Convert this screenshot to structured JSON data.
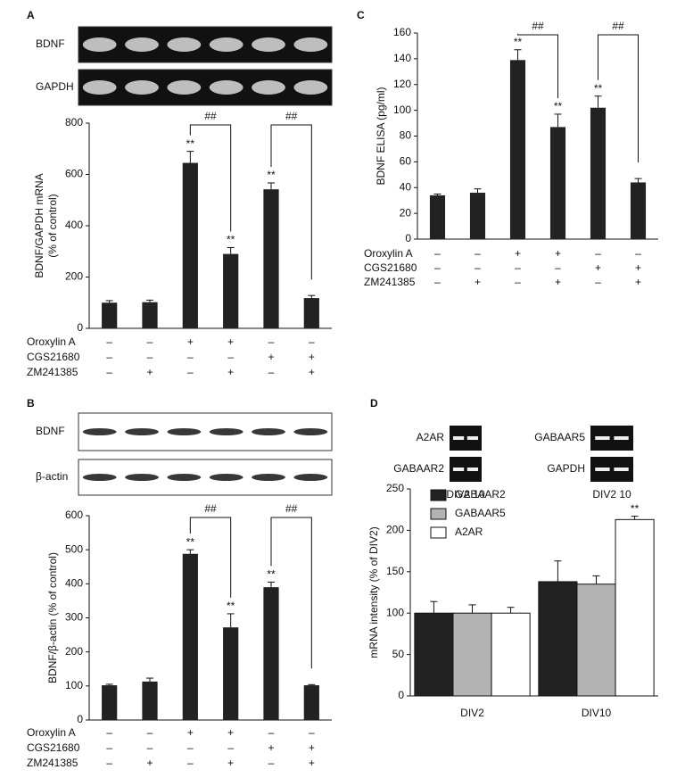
{
  "chart_data": [
    {
      "type": "bar",
      "panel": "A",
      "blots": [
        "BDNF",
        "GAPDH"
      ],
      "ylabel": [
        "BDNF/GAPDH mRNA",
        "(% of control)"
      ],
      "values": [
        100,
        102,
        645,
        290,
        542,
        118
      ],
      "errors": [
        8,
        8,
        45,
        25,
        25,
        10
      ],
      "annotations": [
        null,
        null,
        "**",
        "**",
        "**",
        null
      ],
      "brackets": [
        {
          "label": "##",
          "bars": [
            2,
            3
          ]
        },
        {
          "label": "##",
          "bars": [
            4,
            5
          ]
        }
      ],
      "ylim": [
        0,
        800
      ],
      "yticks": [
        0,
        200,
        400,
        600,
        800
      ],
      "color": "#222222",
      "treatments": [
        {
          "name": "Oroxylin A",
          "signs": [
            "–",
            "–",
            "+",
            "+",
            "–",
            "–"
          ]
        },
        {
          "name": "CGS21680",
          "signs": [
            "–",
            "–",
            "–",
            "–",
            "+",
            "+"
          ]
        },
        {
          "name": "ZM241385",
          "signs": [
            "–",
            "+",
            "–",
            "+",
            "–",
            "+"
          ]
        }
      ]
    },
    {
      "type": "bar",
      "panel": "B",
      "blots": [
        "BDNF",
        "β-actin"
      ],
      "ylabel": [
        "BDNF/β-actin (% of control)"
      ],
      "values": [
        102,
        113,
        488,
        272,
        390,
        102
      ],
      "errors": [
        3,
        10,
        12,
        40,
        15,
        2
      ],
      "annotations": [
        null,
        null,
        "**",
        "**",
        "**",
        null
      ],
      "brackets": [
        {
          "label": "##",
          "bars": [
            2,
            3
          ]
        },
        {
          "label": "##",
          "bars": [
            4,
            5
          ]
        }
      ],
      "ylim": [
        0,
        600
      ],
      "yticks": [
        0,
        100,
        200,
        300,
        400,
        500,
        600
      ],
      "color": "#222222",
      "treatments": [
        {
          "name": "Oroxylin A",
          "signs": [
            "–",
            "–",
            "+",
            "+",
            "–",
            "–"
          ]
        },
        {
          "name": "CGS21680",
          "signs": [
            "–",
            "–",
            "–",
            "–",
            "+",
            "+"
          ]
        },
        {
          "name": "ZM241385",
          "signs": [
            "–",
            "+",
            "–",
            "+",
            "–",
            "+"
          ]
        }
      ]
    },
    {
      "type": "bar",
      "panel": "C",
      "ylabel": [
        "BDNF ELISA (pg/ml)"
      ],
      "values": [
        34,
        36,
        139,
        87,
        102,
        44
      ],
      "errors": [
        1,
        3,
        8,
        10,
        9,
        3
      ],
      "annotations": [
        null,
        null,
        "**",
        "**",
        "**",
        null
      ],
      "brackets": [
        {
          "label": "##",
          "bars": [
            2,
            3
          ]
        },
        {
          "label": "##",
          "bars": [
            4,
            5
          ]
        }
      ],
      "ylim": [
        0,
        160
      ],
      "yticks": [
        0,
        20,
        40,
        60,
        80,
        100,
        120,
        140,
        160
      ],
      "color": "#222222",
      "treatments": [
        {
          "name": "Oroxylin A",
          "signs": [
            "–",
            "–",
            "+",
            "+",
            "–",
            "–"
          ]
        },
        {
          "name": "CGS21680",
          "signs": [
            "–",
            "–",
            "–",
            "–",
            "+",
            "+"
          ]
        },
        {
          "name": "ZM241385",
          "signs": [
            "–",
            "+",
            "–",
            "+",
            "–",
            "+"
          ]
        }
      ]
    },
    {
      "type": "bar",
      "panel": "D",
      "gels": [
        "A2AR",
        "GABAAR2",
        "GABAAR5",
        "GAPDH"
      ],
      "lanes_label": "DIV2 10",
      "ylabel": [
        "mRNA intensity (% of DIV2)"
      ],
      "categories": [
        "DIV2",
        "DIV10"
      ],
      "series": [
        {
          "name": "GABAAR2",
          "color": "#222222",
          "values": [
            100,
            138
          ],
          "errors": [
            14,
            25
          ],
          "annotations": [
            null,
            null
          ]
        },
        {
          "name": "GABAAR5",
          "color": "#b3b3b3",
          "values": [
            100,
            135
          ],
          "errors": [
            10,
            10
          ],
          "annotations": [
            null,
            null
          ]
        },
        {
          "name": "A2AR",
          "color": "#ffffff",
          "values": [
            100,
            213
          ],
          "errors": [
            7,
            4
          ],
          "annotations": [
            null,
            "**"
          ]
        }
      ],
      "ylim": [
        0,
        250
      ],
      "yticks": [
        0,
        50,
        100,
        150,
        200,
        250
      ]
    }
  ]
}
